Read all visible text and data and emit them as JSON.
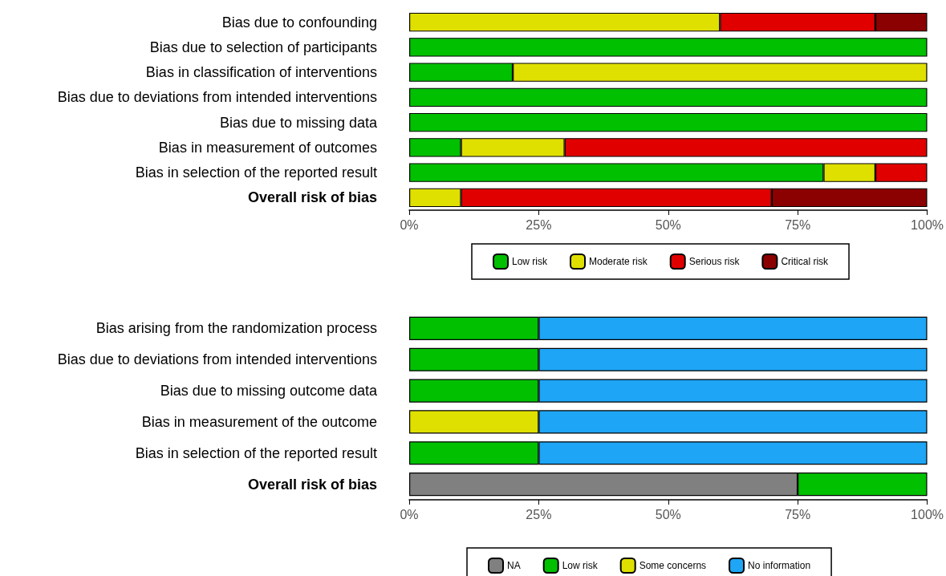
{
  "chart_data": [
    {
      "type": "bar",
      "orientation": "horizontal",
      "stacked": true,
      "legend": "bottom",
      "categories": [
        "Bias due to confounding",
        "Bias due to selection of participants",
        "Bias in classification of interventions",
        "Bias due to deviations from intended interventions",
        "Bias due to missing data",
        "Bias in measurement of outcomes",
        "Bias in selection of the reported result",
        "Overall risk of bias"
      ],
      "series": [
        {
          "name": "Low risk",
          "color": "#00c000",
          "values": [
            0,
            100,
            20,
            100,
            100,
            10,
            80,
            0
          ]
        },
        {
          "name": "Moderate risk",
          "color": "#e0e000",
          "values": [
            60,
            0,
            80,
            0,
            0,
            20,
            10,
            10
          ]
        },
        {
          "name": "Serious risk",
          "color": "#e00000",
          "values": [
            30,
            0,
            0,
            0,
            0,
            70,
            10,
            60
          ]
        },
        {
          "name": "Critical risk",
          "color": "#8b0000",
          "values": [
            10,
            0,
            0,
            0,
            0,
            0,
            0,
            30
          ]
        }
      ],
      "xlim": [
        0,
        100
      ],
      "xticks": [
        {
          "value": 0,
          "label": "0%"
        },
        {
          "value": 25,
          "label": "25%"
        },
        {
          "value": 50,
          "label": "50%"
        },
        {
          "value": 75,
          "label": "75%"
        },
        {
          "value": 100,
          "label": "100%"
        }
      ]
    },
    {
      "type": "bar",
      "orientation": "horizontal",
      "stacked": true,
      "legend": "bottom",
      "categories": [
        "Bias arising from the randomization process",
        "Bias due to deviations from intended interventions",
        "Bias due to missing outcome data",
        "Bias in measurement of the outcome",
        "Bias in selection of the reported result",
        "Overall risk of bias"
      ],
      "series": [
        {
          "name": "NA",
          "color": "#808080",
          "values": [
            0,
            0,
            0,
            0,
            0,
            75
          ]
        },
        {
          "name": "Low risk",
          "color": "#00c000",
          "values": [
            25,
            25,
            25,
            0,
            25,
            25
          ]
        },
        {
          "name": "Some concerns",
          "color": "#e0e000",
          "values": [
            0,
            0,
            0,
            25,
            0,
            0
          ]
        },
        {
          "name": "No information",
          "color": "#1ea5f5",
          "values": [
            75,
            75,
            75,
            75,
            75,
            0
          ]
        }
      ],
      "xlim": [
        0,
        100
      ],
      "xticks": [
        {
          "value": 0,
          "label": "0%"
        },
        {
          "value": 25,
          "label": "25%"
        },
        {
          "value": 50,
          "label": "50%"
        },
        {
          "value": 75,
          "label": "75%"
        },
        {
          "value": 100,
          "label": "100%"
        }
      ]
    }
  ]
}
